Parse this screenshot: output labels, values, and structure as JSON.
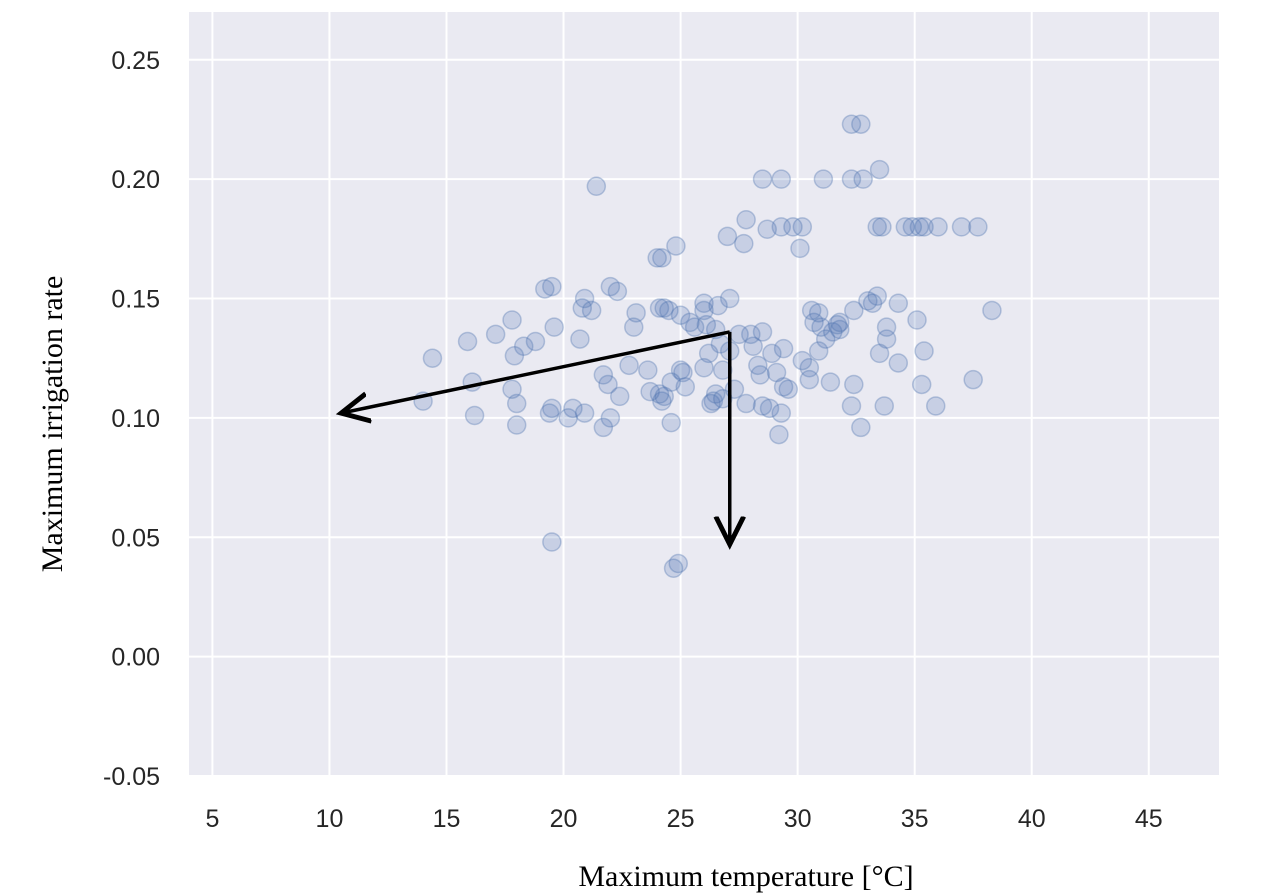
{
  "chart_data": {
    "type": "scatter",
    "title": "",
    "xlabel": "Maximum temperature [°C]",
    "ylabel": "Maximum irrigation rate",
    "xlim": [
      4,
      48
    ],
    "ylim": [
      -0.05,
      0.27
    ],
    "x_ticks": [
      "5",
      "10",
      "15",
      "20",
      "25",
      "30",
      "35",
      "40",
      "45"
    ],
    "y_ticks": [
      "-0.05",
      "0.00",
      "0.05",
      "0.10",
      "0.15",
      "0.20",
      "0.25"
    ],
    "grid": true,
    "background": "#eaeaf2",
    "grid_color": "#ffffff",
    "marker_color": "#4c72b0",
    "arrow_color": "#000000",
    "annotations": [
      {
        "type": "arrow",
        "from": [
          27.1,
          0.136
        ],
        "to": [
          10.5,
          0.102
        ]
      },
      {
        "type": "arrow",
        "from": [
          27.1,
          0.136
        ],
        "to": [
          27.1,
          0.047
        ]
      }
    ],
    "points": [
      [
        14.0,
        0.107
      ],
      [
        14.4,
        0.125
      ],
      [
        15.9,
        0.132
      ],
      [
        16.1,
        0.115
      ],
      [
        16.2,
        0.101
      ],
      [
        17.1,
        0.135
      ],
      [
        17.8,
        0.141
      ],
      [
        17.8,
        0.112
      ],
      [
        17.9,
        0.126
      ],
      [
        18.0,
        0.106
      ],
      [
        18.0,
        0.097
      ],
      [
        18.3,
        0.13
      ],
      [
        18.8,
        0.132
      ],
      [
        19.2,
        0.154
      ],
      [
        19.5,
        0.155
      ],
      [
        19.4,
        0.102
      ],
      [
        19.5,
        0.104
      ],
      [
        19.6,
        0.138
      ],
      [
        19.5,
        0.048
      ],
      [
        20.2,
        0.1
      ],
      [
        20.4,
        0.104
      ],
      [
        20.7,
        0.133
      ],
      [
        20.8,
        0.146
      ],
      [
        20.9,
        0.15
      ],
      [
        20.9,
        0.102
      ],
      [
        21.2,
        0.145
      ],
      [
        21.4,
        0.197
      ],
      [
        21.7,
        0.118
      ],
      [
        21.7,
        0.096
      ],
      [
        21.9,
        0.114
      ],
      [
        22.0,
        0.155
      ],
      [
        22.0,
        0.1
      ],
      [
        22.3,
        0.153
      ],
      [
        22.4,
        0.109
      ],
      [
        22.8,
        0.122
      ],
      [
        23.0,
        0.138
      ],
      [
        23.1,
        0.144
      ],
      [
        23.6,
        0.12
      ],
      [
        23.7,
        0.111
      ],
      [
        24.0,
        0.167
      ],
      [
        24.1,
        0.146
      ],
      [
        24.1,
        0.11
      ],
      [
        24.2,
        0.167
      ],
      [
        24.2,
        0.107
      ],
      [
        24.3,
        0.146
      ],
      [
        24.3,
        0.109
      ],
      [
        24.5,
        0.145
      ],
      [
        24.6,
        0.115
      ],
      [
        24.6,
        0.098
      ],
      [
        24.8,
        0.172
      ],
      [
        24.7,
        0.037
      ],
      [
        24.9,
        0.039
      ],
      [
        25.0,
        0.143
      ],
      [
        25.0,
        0.12
      ],
      [
        25.1,
        0.119
      ],
      [
        25.2,
        0.113
      ],
      [
        25.4,
        0.14
      ],
      [
        25.6,
        0.138
      ],
      [
        26.0,
        0.148
      ],
      [
        26.0,
        0.121
      ],
      [
        26.0,
        0.145
      ],
      [
        26.1,
        0.139
      ],
      [
        26.2,
        0.127
      ],
      [
        26.3,
        0.106
      ],
      [
        26.4,
        0.107
      ],
      [
        26.5,
        0.137
      ],
      [
        26.5,
        0.11
      ],
      [
        26.6,
        0.147
      ],
      [
        26.7,
        0.131
      ],
      [
        26.8,
        0.12
      ],
      [
        26.8,
        0.108
      ],
      [
        27.0,
        0.176
      ],
      [
        27.1,
        0.15
      ],
      [
        27.1,
        0.128
      ],
      [
        27.3,
        0.112
      ],
      [
        27.5,
        0.135
      ],
      [
        27.7,
        0.173
      ],
      [
        27.8,
        0.183
      ],
      [
        27.8,
        0.106
      ],
      [
        28.0,
        0.135
      ],
      [
        28.1,
        0.13
      ],
      [
        28.3,
        0.122
      ],
      [
        28.4,
        0.118
      ],
      [
        28.5,
        0.2
      ],
      [
        28.5,
        0.136
      ],
      [
        28.5,
        0.105
      ],
      [
        28.7,
        0.179
      ],
      [
        28.8,
        0.104
      ],
      [
        28.9,
        0.127
      ],
      [
        29.1,
        0.119
      ],
      [
        29.2,
        0.093
      ],
      [
        29.3,
        0.2
      ],
      [
        29.3,
        0.18
      ],
      [
        29.3,
        0.102
      ],
      [
        29.4,
        0.129
      ],
      [
        29.4,
        0.113
      ],
      [
        29.6,
        0.112
      ],
      [
        29.8,
        0.18
      ],
      [
        30.1,
        0.171
      ],
      [
        30.2,
        0.18
      ],
      [
        30.2,
        0.124
      ],
      [
        30.5,
        0.116
      ],
      [
        30.5,
        0.121
      ],
      [
        30.6,
        0.145
      ],
      [
        30.7,
        0.14
      ],
      [
        30.9,
        0.144
      ],
      [
        30.9,
        0.128
      ],
      [
        31.0,
        0.138
      ],
      [
        31.1,
        0.2
      ],
      [
        31.2,
        0.133
      ],
      [
        31.4,
        0.115
      ],
      [
        31.5,
        0.136
      ],
      [
        31.7,
        0.139
      ],
      [
        31.8,
        0.14
      ],
      [
        31.8,
        0.137
      ],
      [
        32.3,
        0.223
      ],
      [
        32.3,
        0.2
      ],
      [
        32.3,
        0.105
      ],
      [
        32.4,
        0.114
      ],
      [
        32.4,
        0.145
      ],
      [
        32.7,
        0.223
      ],
      [
        32.7,
        0.096
      ],
      [
        32.8,
        0.2
      ],
      [
        33.0,
        0.149
      ],
      [
        33.2,
        0.148
      ],
      [
        33.4,
        0.151
      ],
      [
        33.4,
        0.18
      ],
      [
        33.5,
        0.204
      ],
      [
        33.5,
        0.127
      ],
      [
        33.6,
        0.18
      ],
      [
        33.7,
        0.105
      ],
      [
        33.8,
        0.138
      ],
      [
        33.8,
        0.133
      ],
      [
        34.3,
        0.148
      ],
      [
        34.3,
        0.123
      ],
      [
        34.6,
        0.18
      ],
      [
        34.9,
        0.18
      ],
      [
        35.1,
        0.141
      ],
      [
        35.2,
        0.18
      ],
      [
        35.3,
        0.114
      ],
      [
        35.4,
        0.18
      ],
      [
        35.4,
        0.128
      ],
      [
        35.9,
        0.105
      ],
      [
        36.0,
        0.18
      ],
      [
        37.0,
        0.18
      ],
      [
        37.5,
        0.116
      ],
      [
        37.7,
        0.18
      ],
      [
        38.3,
        0.145
      ]
    ]
  }
}
